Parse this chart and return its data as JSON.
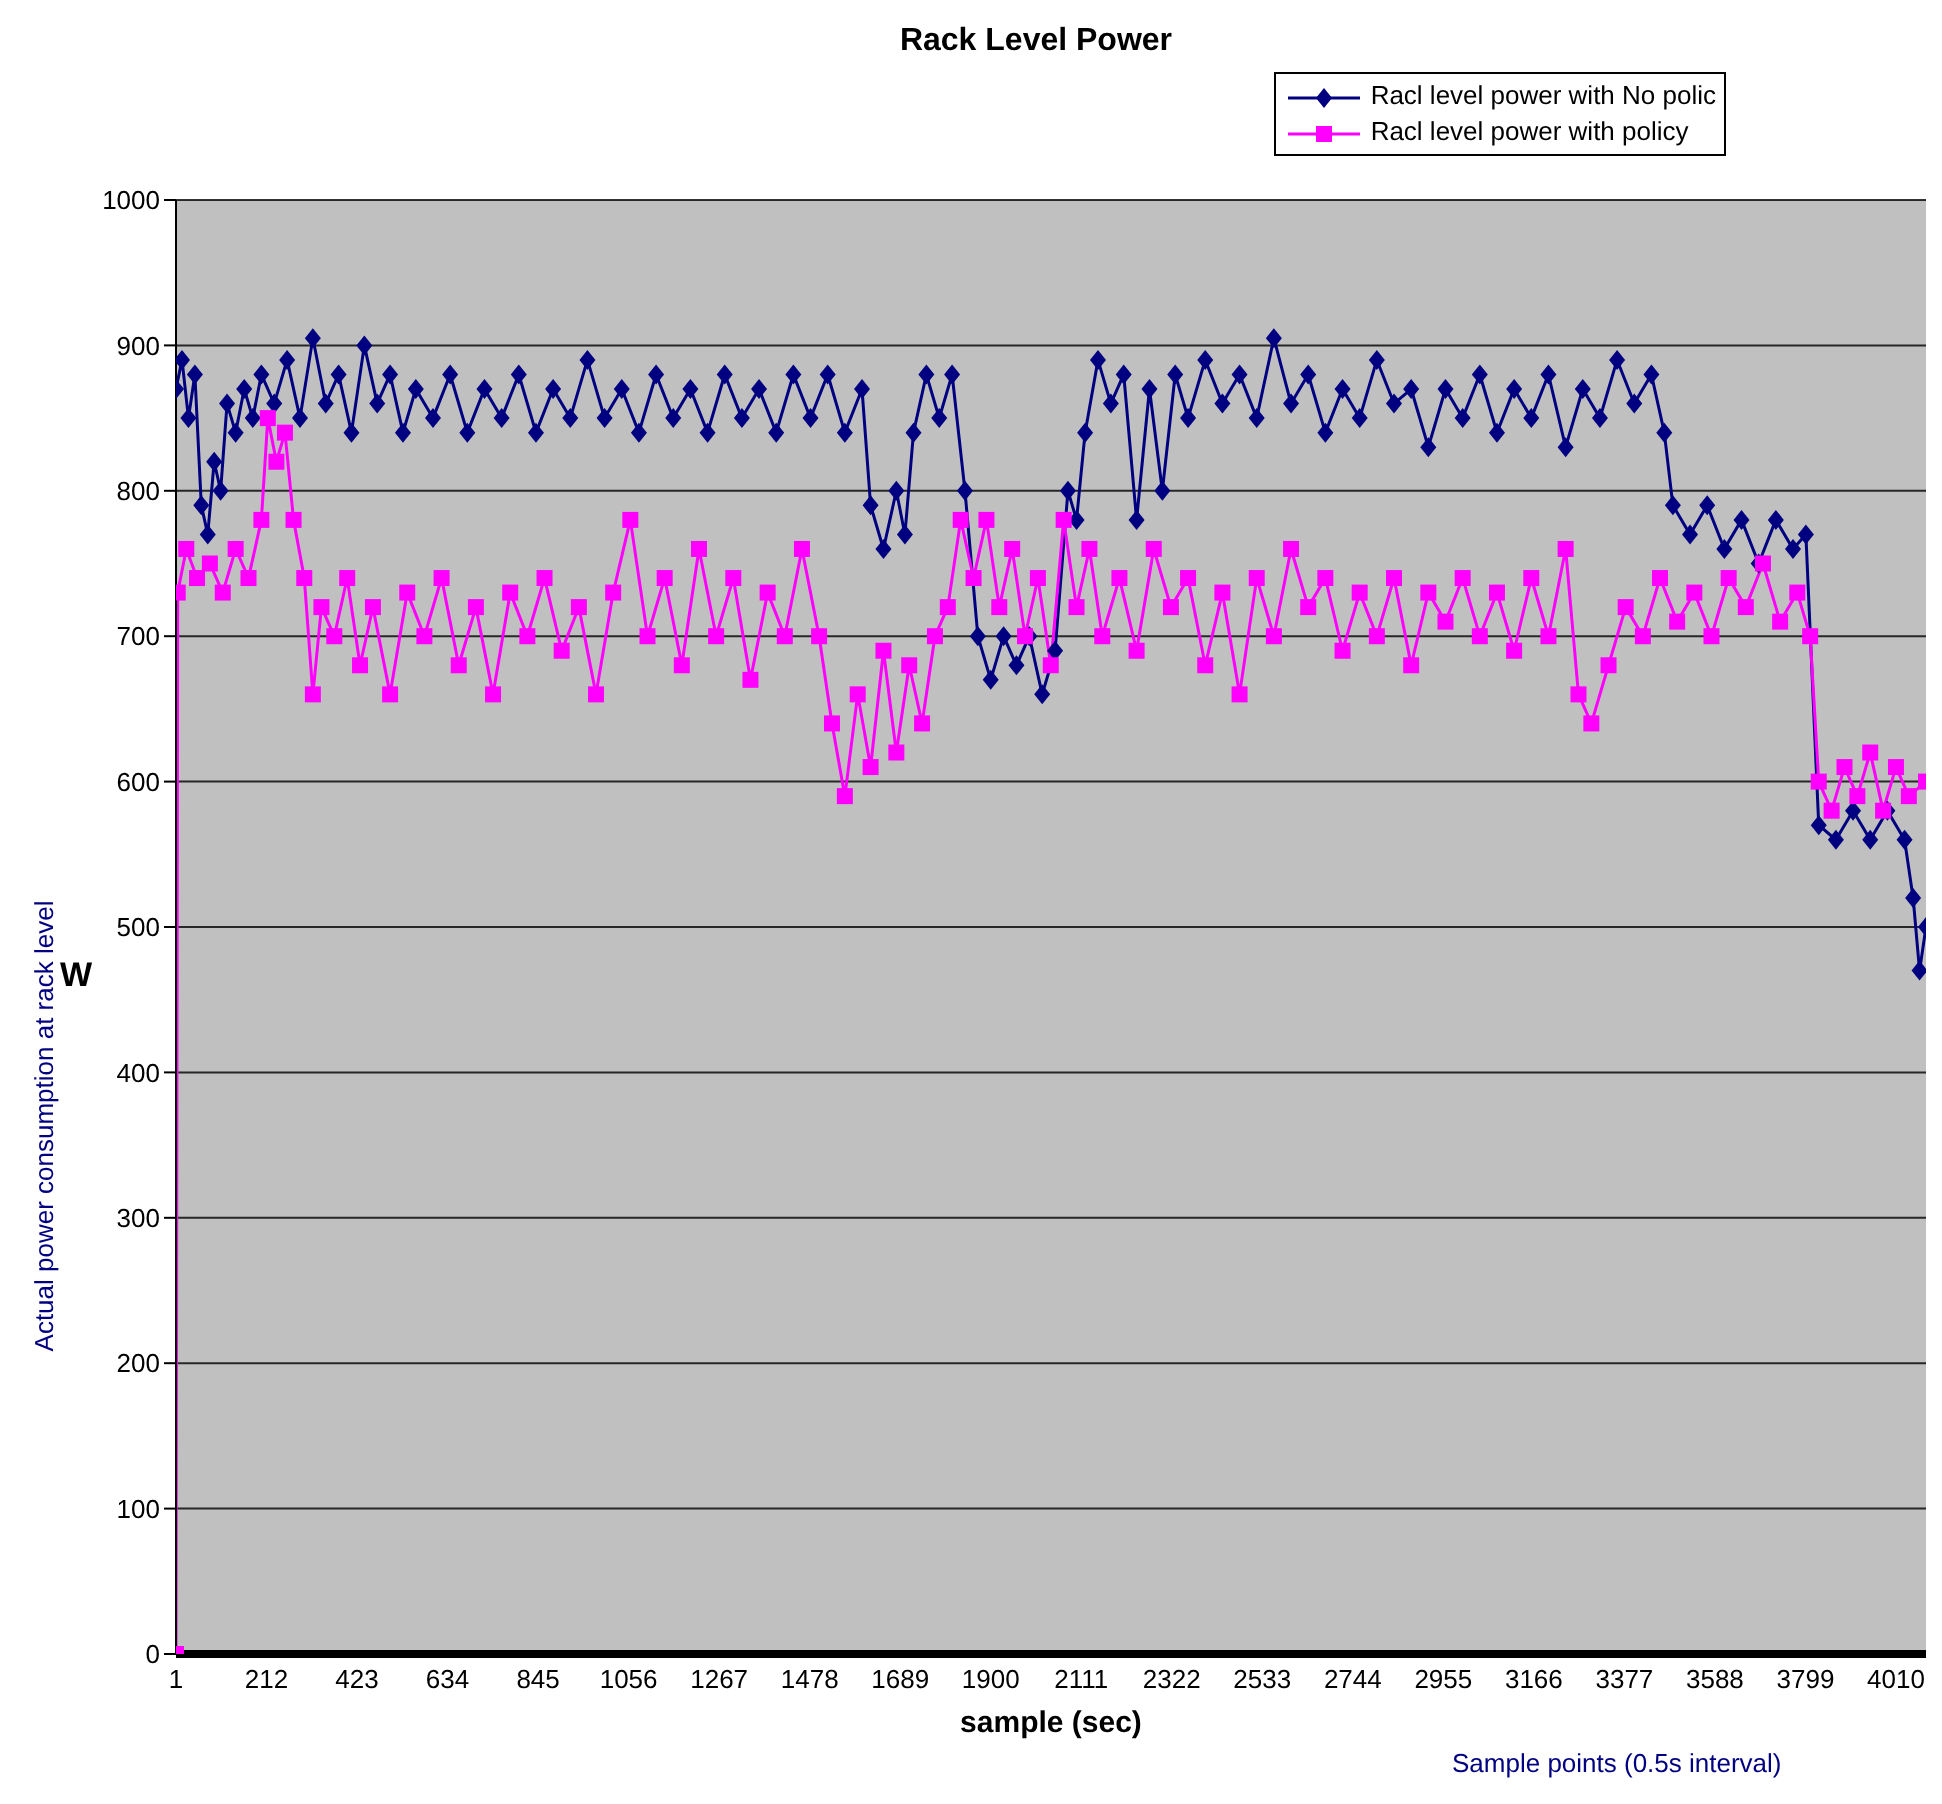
{
  "chart_data": {
    "type": "line",
    "title": "Rack Level Power",
    "xlabel": "sample (sec)",
    "ylabel": "Actual power consumption at rack level",
    "annotations": [
      "W",
      "Sample points (0.5s interval)"
    ],
    "xlim": [
      1,
      4080
    ],
    "xticks": [
      1,
      212,
      423,
      634,
      845,
      1056,
      1267,
      1478,
      1689,
      1900,
      2111,
      2322,
      2533,
      2744,
      2955,
      3166,
      3377,
      3588,
      3799,
      4010
    ],
    "ylim": [
      0,
      1000
    ],
    "yticks": [
      0,
      100,
      200,
      300,
      400,
      500,
      600,
      700,
      800,
      900,
      1000
    ],
    "grid": "y",
    "legend": "top right",
    "line_style": "solid",
    "series": [
      {
        "name": "Racl level power with No polic",
        "color": "#000080",
        "marker": "diamond",
        "x": [
          1,
          15,
          30,
          45,
          60,
          75,
          90,
          105,
          120,
          140,
          160,
          180,
          200,
          230,
          260,
          290,
          320,
          350,
          380,
          410,
          440,
          470,
          500,
          530,
          560,
          600,
          640,
          680,
          720,
          760,
          800,
          840,
          880,
          920,
          960,
          1000,
          1040,
          1080,
          1120,
          1160,
          1200,
          1240,
          1280,
          1320,
          1360,
          1400,
          1440,
          1480,
          1520,
          1560,
          1600,
          1620,
          1650,
          1680,
          1700,
          1720,
          1750,
          1780,
          1810,
          1840,
          1870,
          1900,
          1930,
          1960,
          1990,
          2020,
          2050,
          2080,
          2100,
          2120,
          2150,
          2180,
          2210,
          2240,
          2270,
          2300,
          2330,
          2360,
          2400,
          2440,
          2480,
          2520,
          2560,
          2600,
          2640,
          2680,
          2720,
          2760,
          2800,
          2840,
          2880,
          2920,
          2960,
          3000,
          3040,
          3080,
          3120,
          3160,
          3200,
          3240,
          3280,
          3320,
          3360,
          3400,
          3440,
          3470,
          3490,
          3530,
          3570,
          3610,
          3650,
          3690,
          3730,
          3770,
          3800,
          3830,
          3870,
          3910,
          3950,
          3990,
          4030,
          4050,
          4065,
          4080
        ],
        "values": [
          870,
          890,
          850,
          880,
          790,
          770,
          820,
          800,
          860,
          840,
          870,
          850,
          880,
          860,
          890,
          850,
          905,
          860,
          880,
          840,
          900,
          860,
          880,
          840,
          870,
          850,
          880,
          840,
          870,
          850,
          880,
          840,
          870,
          850,
          890,
          850,
          870,
          840,
          880,
          850,
          870,
          840,
          880,
          850,
          870,
          840,
          880,
          850,
          880,
          840,
          870,
          790,
          760,
          800,
          770,
          840,
          880,
          850,
          880,
          800,
          700,
          670,
          700,
          680,
          700,
          660,
          690,
          800,
          780,
          840,
          890,
          860,
          880,
          780,
          870,
          800,
          880,
          850,
          890,
          860,
          880,
          850,
          905,
          860,
          880,
          840,
          870,
          850,
          890,
          860,
          870,
          830,
          870,
          850,
          880,
          840,
          870,
          850,
          880,
          830,
          870,
          850,
          890,
          860,
          880,
          840,
          790,
          770,
          790,
          760,
          780,
          750,
          780,
          760,
          770,
          570,
          560,
          580,
          560,
          580,
          560,
          520,
          470,
          500
        ]
      },
      {
        "name": "Racl level power with policy",
        "color": "#ff00ff",
        "marker": "square",
        "x": [
          1,
          5,
          25,
          50,
          80,
          110,
          140,
          170,
          200,
          215,
          235,
          255,
          275,
          300,
          320,
          340,
          370,
          400,
          430,
          460,
          500,
          540,
          580,
          620,
          660,
          700,
          740,
          780,
          820,
          860,
          900,
          940,
          980,
          1020,
          1060,
          1100,
          1140,
          1180,
          1220,
          1260,
          1300,
          1340,
          1380,
          1420,
          1460,
          1500,
          1530,
          1560,
          1590,
          1620,
          1650,
          1680,
          1710,
          1740,
          1770,
          1800,
          1830,
          1860,
          1890,
          1920,
          1950,
          1980,
          2010,
          2040,
          2070,
          2100,
          2130,
          2160,
          2200,
          2240,
          2280,
          2320,
          2360,
          2400,
          2440,
          2480,
          2520,
          2560,
          2600,
          2640,
          2680,
          2720,
          2760,
          2800,
          2840,
          2880,
          2920,
          2960,
          3000,
          3040,
          3080,
          3120,
          3160,
          3200,
          3240,
          3270,
          3300,
          3340,
          3380,
          3420,
          3460,
          3500,
          3540,
          3580,
          3620,
          3660,
          3700,
          3740,
          3780,
          3810,
          3830,
          3860,
          3890,
          3920,
          3950,
          3980,
          4010,
          4040,
          4080
        ],
        "values": [
          0,
          730,
          760,
          740,
          750,
          730,
          760,
          740,
          780,
          850,
          820,
          840,
          780,
          740,
          660,
          720,
          700,
          740,
          680,
          720,
          660,
          730,
          700,
          740,
          680,
          720,
          660,
          730,
          700,
          740,
          690,
          720,
          660,
          730,
          780,
          700,
          740,
          680,
          760,
          700,
          740,
          670,
          730,
          700,
          760,
          700,
          640,
          590,
          660,
          610,
          690,
          620,
          680,
          640,
          700,
          720,
          780,
          740,
          780,
          720,
          760,
          700,
          740,
          680,
          780,
          720,
          760,
          700,
          740,
          690,
          760,
          720,
          740,
          680,
          730,
          660,
          740,
          700,
          760,
          720,
          740,
          690,
          730,
          700,
          740,
          680,
          730,
          710,
          740,
          700,
          730,
          690,
          740,
          700,
          760,
          660,
          640,
          680,
          720,
          700,
          740,
          710,
          730,
          700,
          740,
          720,
          750,
          710,
          730,
          700,
          600,
          580,
          610,
          590,
          620,
          580,
          610,
          590,
          600
        ]
      }
    ]
  }
}
